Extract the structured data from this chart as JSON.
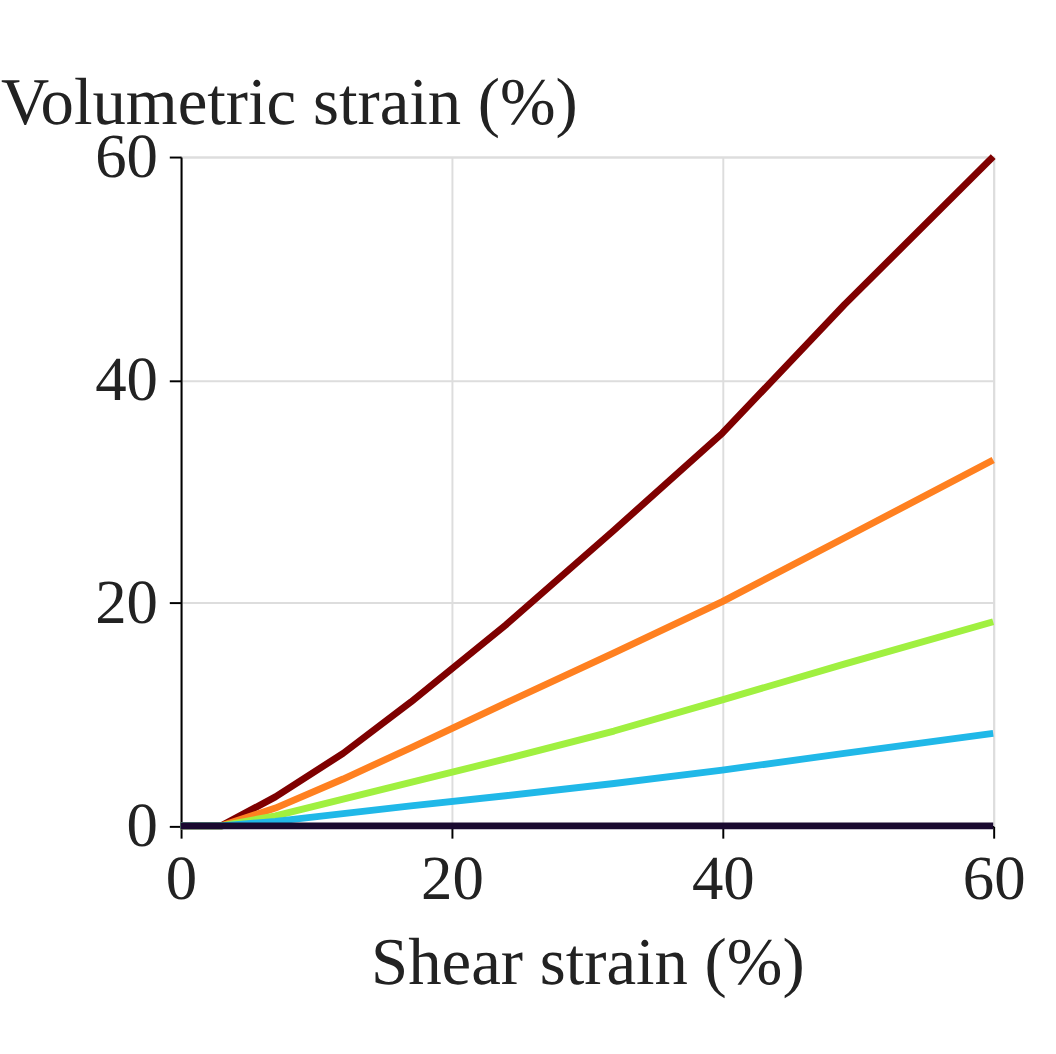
{
  "chart_data": {
    "type": "line",
    "xlabel": "Shear strain (%)",
    "ylabel": "Volumetric strain (%)",
    "x": [
      0,
      3,
      7,
      12,
      17,
      24,
      32,
      40,
      49,
      60
    ],
    "series": [
      {
        "color": "#7f0000",
        "values": [
          0,
          0,
          2.6,
          6.5,
          11.1,
          18,
          26.5,
          35.2,
          46.7,
          60
        ]
      },
      {
        "color": "#ff8020",
        "values": [
          0,
          0,
          1.6,
          4.2,
          7,
          11,
          15.5,
          20.1,
          25.8,
          32.8
        ]
      },
      {
        "color": "#a0f040",
        "values": [
          0,
          0,
          0.9,
          2.4,
          3.9,
          6,
          8.5,
          11.3,
          14.5,
          18.3
        ]
      },
      {
        "color": "#20b8e8",
        "values": [
          0,
          0,
          0.4,
          1.1,
          1.8,
          2.7,
          3.8,
          5,
          6.5,
          8.3
        ]
      },
      {
        "color": "#1a0a30",
        "values": [
          0,
          0,
          0,
          0,
          0,
          0,
          0,
          0,
          0,
          0
        ]
      }
    ],
    "xlim": [
      0,
      60
    ],
    "ylim": [
      0,
      60
    ],
    "xticks": [
      0,
      20,
      40,
      60
    ],
    "yticks": [
      0,
      20,
      40,
      60
    ],
    "grid": true
  }
}
